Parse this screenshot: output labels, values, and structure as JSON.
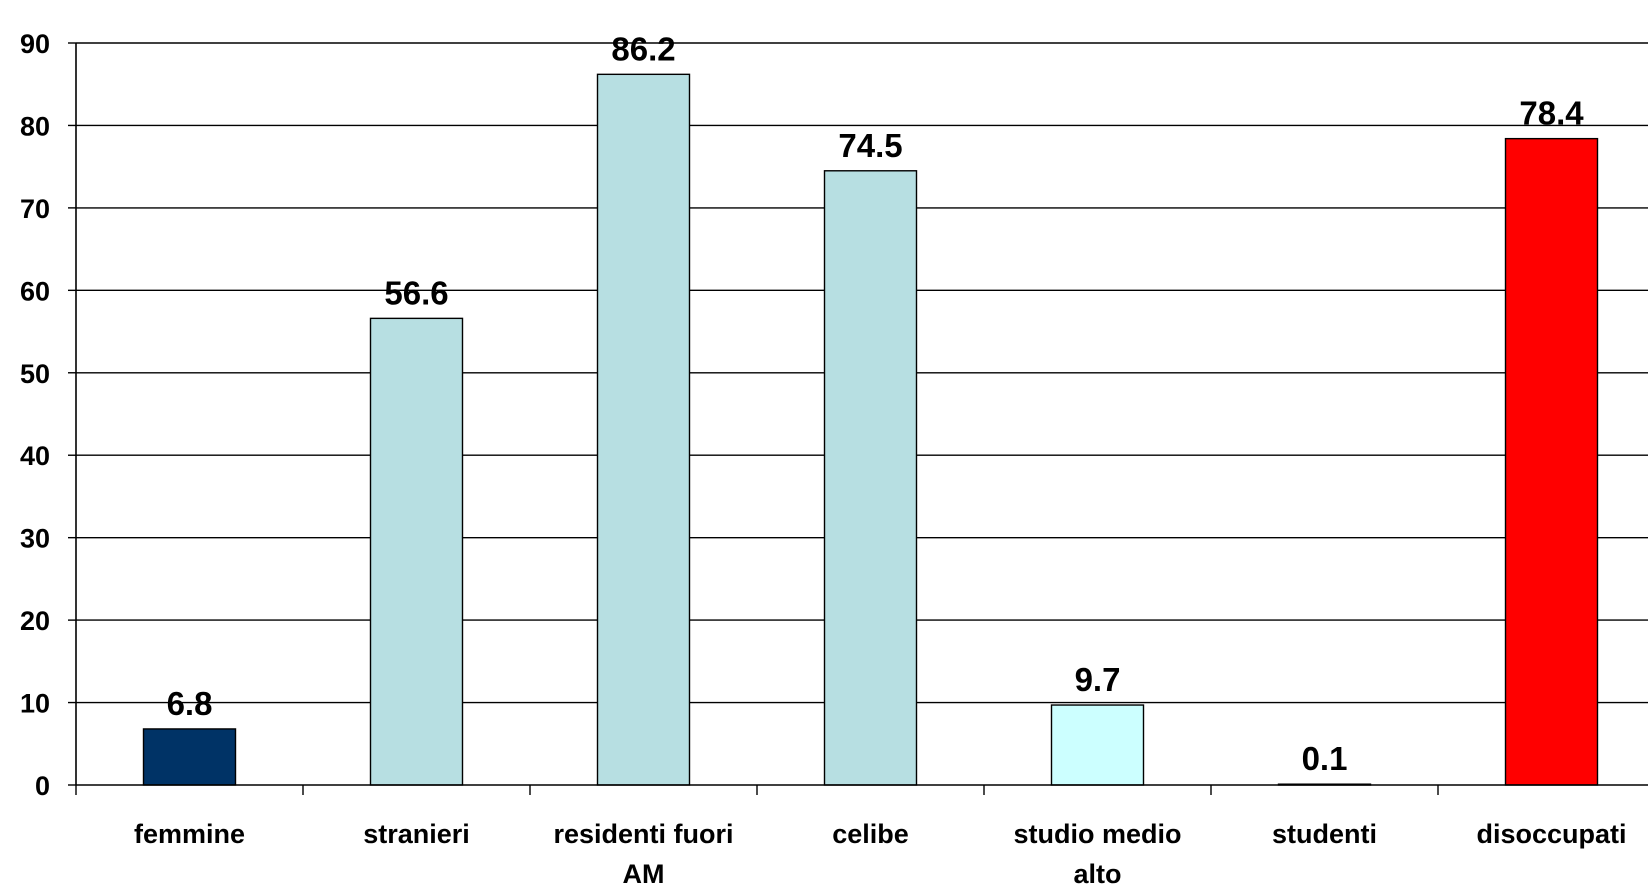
{
  "chart_data": {
    "type": "bar",
    "categories": [
      [
        "femmine"
      ],
      [
        "stranieri"
      ],
      [
        "residenti fuori",
        "AM"
      ],
      [
        "celibe"
      ],
      [
        "studio medio",
        "alto"
      ],
      [
        "studenti"
      ],
      [
        "disoccupati"
      ]
    ],
    "values": [
      6.8,
      56.6,
      86.2,
      74.5,
      9.7,
      0.1,
      78.4
    ],
    "data_labels": [
      "6.8",
      "56.6",
      "86.2",
      "74.5",
      "9.7",
      "0.1",
      "78.4"
    ],
    "bar_colors": [
      "#003366",
      "#b7dfe2",
      "#b7dfe2",
      "#b7dfe2",
      "#ccffff",
      "#b7dfe2",
      "#ff0000"
    ],
    "ylim": [
      0,
      90
    ],
    "yticks": [
      0,
      10,
      20,
      30,
      40,
      50,
      60,
      70,
      80,
      90
    ],
    "grid": true,
    "legend": "none",
    "title": "",
    "xlabel": "",
    "ylabel": ""
  }
}
